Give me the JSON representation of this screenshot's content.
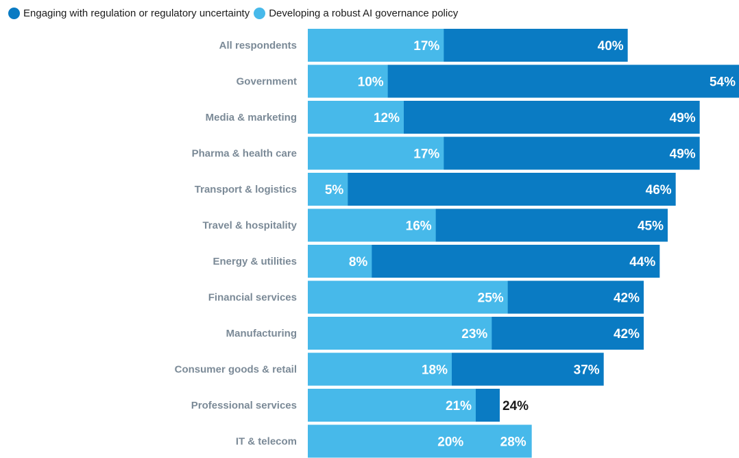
{
  "chart_data": {
    "type": "bar",
    "orientation": "horizontal",
    "stacked": false,
    "overlap": "light series drawn over dark series",
    "categories": [
      "All respondents",
      "Government",
      "Media & marketing",
      "Pharma & health care",
      "Transport & logistics",
      "Travel & hospitality",
      "Energy & utilities",
      "Financial services",
      "Manufacturing",
      "Consumer goods & retail",
      "Professional services",
      "IT & telecom"
    ],
    "series": [
      {
        "name": "Engaging with regulation or regulatory uncertainty",
        "color": "#0a7bc3",
        "values": [
          40,
          54,
          49,
          49,
          46,
          45,
          44,
          42,
          42,
          37,
          24,
          20
        ],
        "labels": [
          "40%",
          "54%",
          "49%",
          "49%",
          "46%",
          "45%",
          "44%",
          "42%",
          "42%",
          "37%",
          "24%",
          "20%"
        ]
      },
      {
        "name": "Developing a robust AI governance policy",
        "color": "#47b9ea",
        "values": [
          17,
          10,
          12,
          17,
          5,
          16,
          8,
          25,
          23,
          18,
          21,
          28
        ],
        "labels": [
          "17%",
          "10%",
          "12%",
          "17%",
          "5%",
          "16%",
          "8%",
          "25%",
          "23%",
          "18%",
          "21%",
          "28%"
        ]
      }
    ],
    "xlim": [
      0,
      54
    ],
    "grid": false,
    "legend_position": "top-left"
  }
}
